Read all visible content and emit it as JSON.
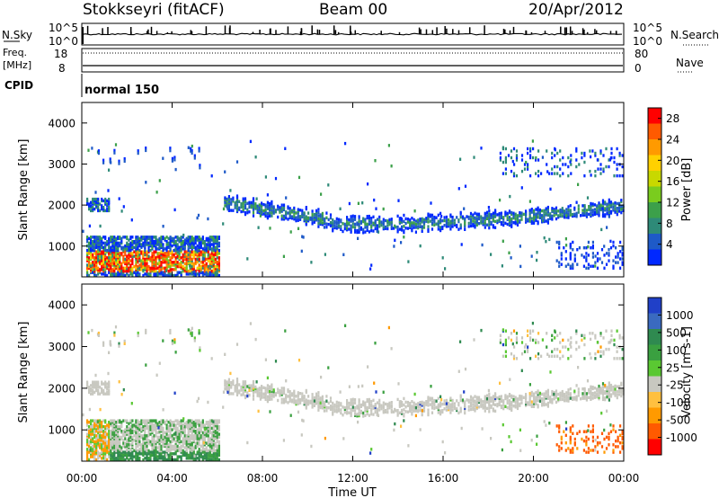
{
  "header": {
    "station": "Stokkseyri (fitACF)",
    "beam": "Beam 00",
    "date": "20/Apr/2012"
  },
  "summary_panels": {
    "nsky": {
      "label": "N.Sky",
      "scale_top": "10^5",
      "scale_bottom": "10^0"
    },
    "nsearch": {
      "label": "N.Search"
    },
    "freq": {
      "label_line1": "Freq.",
      "label_line2": "[MHz]",
      "tick_top": "18",
      "tick_bottom": "8"
    },
    "nave": {
      "label": "Nave",
      "tick_top": "80",
      "tick_bottom": "0"
    },
    "cpid": {
      "label": "CPID",
      "value": "normal 150"
    }
  },
  "chart_data": [
    {
      "type": "heatmap",
      "panel": "power",
      "ylabel": "Slant Range [km]",
      "yticks": [
        "1000",
        "2000",
        "3000",
        "4000"
      ],
      "ylim": [
        250,
        4500
      ],
      "xlim_hours": [
        0,
        24
      ],
      "colorbar": {
        "label": "Power [dB]",
        "ticks": [
          "4",
          "8",
          "12",
          "16",
          "20",
          "24",
          "28"
        ],
        "range": [
          0,
          30
        ],
        "colors": [
          "#0028ff",
          "#1e5ac8",
          "#2e8a78",
          "#3ca04a",
          "#7acc1e",
          "#c8d800",
          "#ffd000",
          "#ff9a00",
          "#ff5a00",
          "#ff0000"
        ]
      },
      "regions": [
        {
          "name": "early range-spread echoes",
          "hours": [
            0.2,
            6.1
          ],
          "range_km": [
            300,
            1300
          ],
          "level": "high"
        },
        {
          "name": "early far band",
          "hours": [
            0.2,
            1.2
          ],
          "range_km": [
            1900,
            2200
          ],
          "level": "low"
        },
        {
          "name": "main band",
          "hours": [
            6.3,
            24
          ],
          "range_km": [
            1300,
            2200
          ],
          "level": "low"
        },
        {
          "name": "evening far echoes",
          "hours": [
            18.5,
            24
          ],
          "range_km": [
            2700,
            3500
          ],
          "level": "low"
        },
        {
          "name": "evening near echoes",
          "hours": [
            21,
            24
          ],
          "range_km": [
            400,
            1200
          ],
          "level": "low"
        }
      ]
    },
    {
      "type": "heatmap",
      "panel": "velocity",
      "ylabel": "Slant Range [km]",
      "yticks": [
        "1000",
        "2000",
        "3000",
        "4000"
      ],
      "ylim": [
        250,
        4500
      ],
      "xlabel": "Time UT",
      "xticks": [
        "00:00",
        "04:00",
        "08:00",
        "12:00",
        "16:00",
        "20:00",
        "00:00"
      ],
      "xlim_hours": [
        0,
        24
      ],
      "colorbar": {
        "label": "Velocity [m s-1]",
        "ticks": [
          "1000",
          "500",
          "100",
          "25",
          "-25",
          "-100",
          "-500",
          "-1000"
        ],
        "colors": [
          "#2040c8",
          "#3a6ac0",
          "#2f8a50",
          "#3aa040",
          "#5ac832",
          "#c8c8c0",
          "#ffc040",
          "#ff9a00",
          "#ff5a00",
          "#ff0000"
        ]
      },
      "regions": [
        {
          "name": "early echoes",
          "hours": [
            0.2,
            6.1
          ],
          "range_km": [
            300,
            1300
          ],
          "dominant": "ground scatter and positive"
        },
        {
          "name": "main band",
          "hours": [
            6.3,
            24
          ],
          "range_km": [
            1300,
            2200
          ],
          "dominant": "ground scatter"
        },
        {
          "name": "evening near echoes",
          "hours": [
            21,
            24
          ],
          "range_km": [
            400,
            1200
          ],
          "dominant": "negative"
        }
      ]
    }
  ]
}
